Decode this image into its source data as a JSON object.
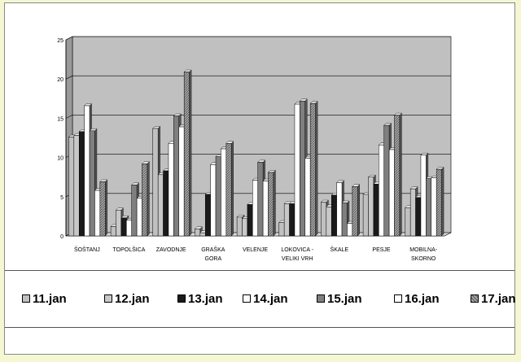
{
  "chart_data": {
    "type": "bar",
    "categories": [
      "ŠOŠTANJ",
      "TOPOLŠICA",
      "ZAVODNJE",
      "GRAŠKA GORA",
      "VELENJE",
      "LOKOVICA - VELIKI VRH",
      "ŠKALE",
      "PESJE",
      "MOBILNA-SKORNO"
    ],
    "category_lines": [
      [
        "ŠOŠTANJ"
      ],
      [
        "TOPOLŠICA"
      ],
      [
        "ZAVODNJE"
      ],
      [
        "GRAŠKA",
        "GORA"
      ],
      [
        "VELENJE"
      ],
      [
        "LOKOVICA -",
        "VELIKI VRH"
      ],
      [
        "ŠKALE"
      ],
      [
        "PESJE"
      ],
      [
        "MOBILNA-",
        "SKORNO"
      ]
    ],
    "series": [
      {
        "name": "11.jan",
        "values": [
          12.6,
          1.2,
          13.7,
          0.9,
          2.4,
          1.7,
          4.3,
          5.3,
          3.6
        ]
      },
      {
        "name": "12.jan",
        "values": [
          12.8,
          3.3,
          7.8,
          0.4,
          2.2,
          4.1,
          3.7,
          7.5,
          6.0
        ]
      },
      {
        "name": "13.jan",
        "values": [
          13.3,
          2.3,
          8.3,
          5.3,
          4.0,
          4.1,
          5.2,
          6.6,
          4.9
        ]
      },
      {
        "name": "14.jan",
        "values": [
          16.6,
          2.0,
          11.8,
          9.1,
          7.1,
          16.8,
          6.8,
          11.6,
          10.3
        ]
      },
      {
        "name": "15.jan",
        "values": [
          13.4,
          6.5,
          15.3,
          10.1,
          9.4,
          17.2,
          4.2,
          14.1,
          7.3
        ]
      },
      {
        "name": "16.jan",
        "values": [
          5.8,
          4.8,
          13.9,
          11.1,
          7.0,
          9.9,
          1.6,
          11.0,
          7.4
        ]
      },
      {
        "name": "17.jan",
        "values": [
          6.9,
          9.2,
          20.9,
          11.8,
          8.1,
          16.9,
          6.3,
          15.4,
          8.5
        ]
      }
    ],
    "ylim": [
      0,
      25
    ],
    "yticks": [
      "0",
      "5",
      "10",
      "15",
      "20",
      "25"
    ],
    "grid": true,
    "legend_position": "bottom",
    "colors": {
      "plot_background": "#c0c0c0",
      "series": [
        "#c0c0c0",
        "#c8c8c8",
        "#1a1a1a",
        "#ffffff",
        "#7f7f7f",
        "#ffffff",
        "#9a9a9a"
      ]
    }
  }
}
